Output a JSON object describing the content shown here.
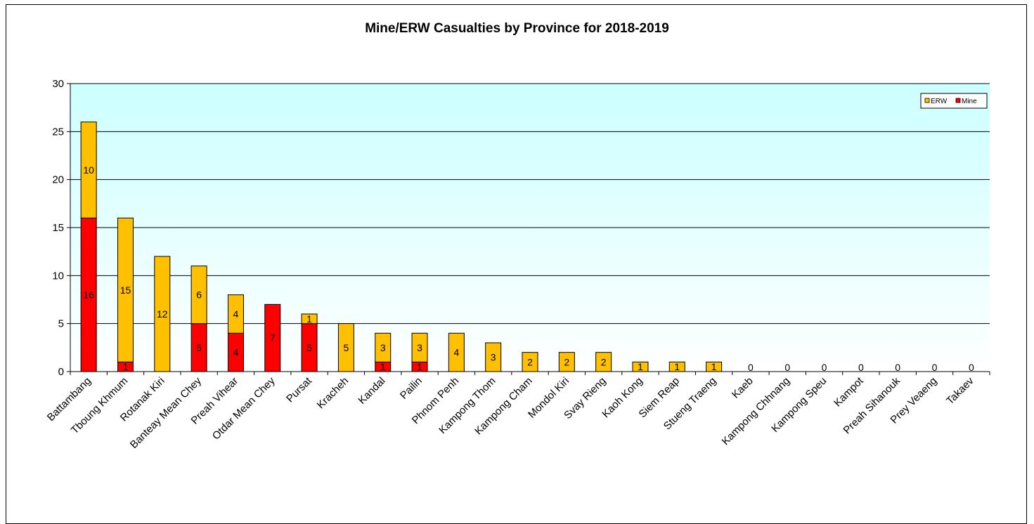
{
  "chart_data": {
    "type": "bar",
    "stacked": true,
    "title": "Mine/ERW Casualties by Province for 2018-2019",
    "xlabel": "",
    "ylabel": "",
    "ylim": [
      0,
      30
    ],
    "yticks": [
      0,
      5,
      10,
      15,
      20,
      25,
      30
    ],
    "grid": true,
    "legend_position": "top-right",
    "categories": [
      "Battambang",
      "Tboung Khmum",
      "Rotanak Kiri",
      "Banteay Mean Chey",
      "Preah Vihear",
      "Otdar Mean Chey",
      "Pursat",
      "Kracheh",
      "Kandal",
      "Pailin",
      "Phnom Penh",
      "Kampong Thom",
      "Kampong Cham",
      "Mondol Kiri",
      "Svay Rieng",
      "Kaoh Kong",
      "Siem Reap",
      "Stueng Traeng",
      "Kaeb",
      "Kampong Chhnang",
      "Kampong Speu",
      "Kampot",
      "Preah Sihanouk",
      "Prey Veaeng",
      "Takaev"
    ],
    "series": [
      {
        "name": "Mine",
        "color": "#ff0000",
        "values": [
          16,
          1,
          0,
          5,
          4,
          7,
          5,
          0,
          1,
          1,
          0,
          0,
          0,
          0,
          0,
          0,
          0,
          0,
          0,
          0,
          0,
          0,
          0,
          0,
          0
        ]
      },
      {
        "name": "ERW",
        "color": "#ffc000",
        "values": [
          10,
          15,
          12,
          6,
          4,
          0,
          1,
          5,
          3,
          3,
          4,
          3,
          2,
          2,
          2,
          1,
          1,
          1,
          0,
          0,
          0,
          0,
          0,
          0,
          0
        ]
      }
    ],
    "legend_order": [
      "ERW",
      "Mine"
    ],
    "plot_background": [
      "#ccffff",
      "#ffffff"
    ]
  }
}
